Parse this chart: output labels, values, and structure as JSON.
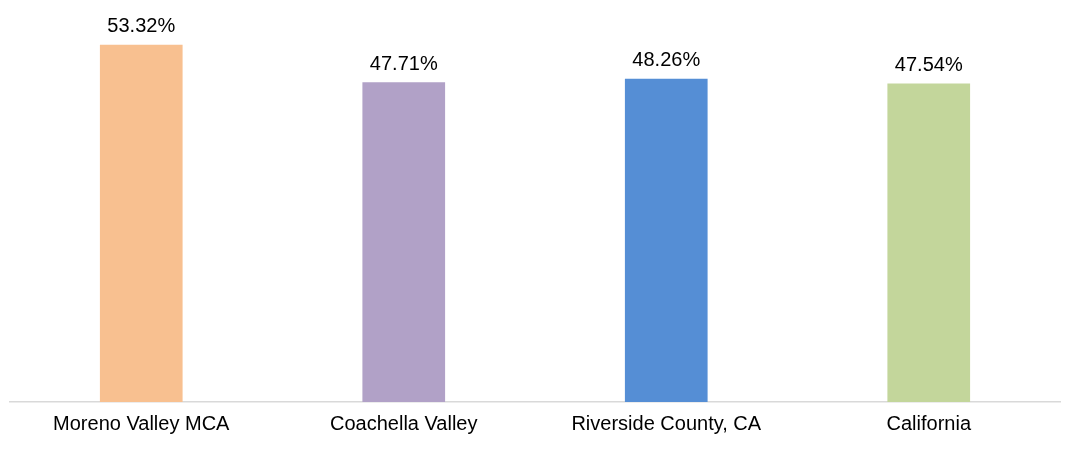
{
  "chart_data": {
    "type": "bar",
    "categories": [
      "Moreno Valley MCA",
      "Coachella Valley",
      "Riverside County, CA",
      "California"
    ],
    "values": [
      53.32,
      47.71,
      48.26,
      47.54
    ],
    "colors": [
      "#f8c090",
      "#b1a1c7",
      "#558ed5",
      "#c3d69b"
    ],
    "value_labels": [
      "53.32%",
      "47.71%",
      "48.26%",
      "47.54%"
    ],
    "legend": false
  }
}
